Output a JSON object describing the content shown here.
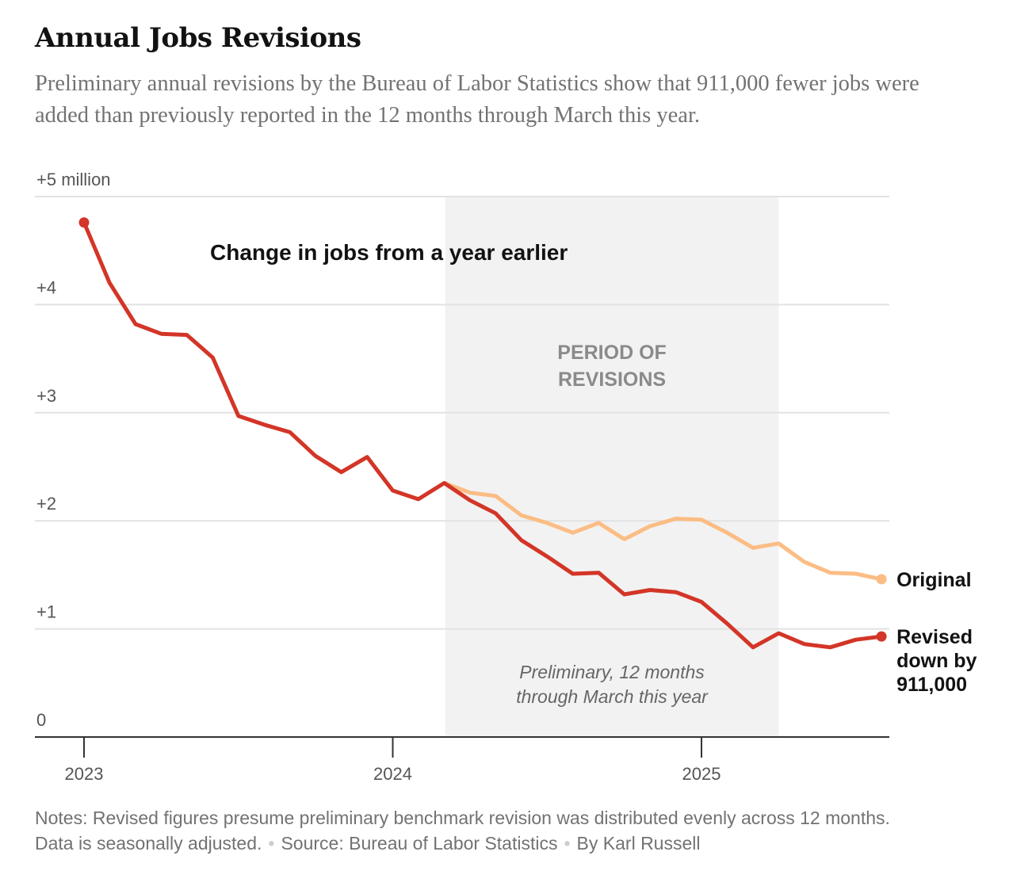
{
  "title": "Annual Jobs Revisions",
  "subtitle": "Preliminary annual revisions by the Bureau of Labor Statistics show that 911,000 fewer jobs were added than previously reported in the 12 months through March this year.",
  "notes": {
    "line1": "Notes: Revised figures presume preliminary benchmark revision was distributed evenly across 12 months.",
    "line2": "Data is seasonally adjusted.",
    "source": "Source: Bureau of Labor Statistics",
    "byline": "By Karl Russell"
  },
  "chart_data": {
    "type": "line",
    "title": "Change in jobs from a year earlier",
    "ylim": [
      0,
      5
    ],
    "y_ticks": [
      {
        "value": 5,
        "label": "+5 million"
      },
      {
        "value": 4,
        "label": "+4"
      },
      {
        "value": 3,
        "label": "+3"
      },
      {
        "value": 2,
        "label": "+2"
      },
      {
        "value": 1,
        "label": "+1"
      },
      {
        "value": 0,
        "label": "0"
      }
    ],
    "x_ticks": [
      {
        "value": 2023,
        "label": "2023"
      },
      {
        "value": 2024,
        "label": "2024"
      },
      {
        "value": 2025,
        "label": "2025"
      }
    ],
    "shaded_region": {
      "start": 2024.17,
      "end": 2025.25,
      "label_line1": "PERIOD OF",
      "label_line2": "REVISIONS",
      "note_line1": "Preliminary, 12 months",
      "note_line2": "through March this year",
      "color": "#f2f2f2"
    },
    "grid": true,
    "series": [
      {
        "name": "Revised",
        "end_label": [
          "Revised",
          "down by",
          "911,000"
        ],
        "color": "#d33527",
        "points": [
          [
            2023.0,
            4.76
          ],
          [
            2023.083,
            4.2
          ],
          [
            2023.167,
            3.82
          ],
          [
            2023.25,
            3.73
          ],
          [
            2023.333,
            3.72
          ],
          [
            2023.417,
            3.51
          ],
          [
            2023.5,
            2.97
          ],
          [
            2023.583,
            2.89
          ],
          [
            2023.667,
            2.82
          ],
          [
            2023.75,
            2.6
          ],
          [
            2023.833,
            2.45
          ],
          [
            2023.917,
            2.59
          ],
          [
            2024.0,
            2.28
          ],
          [
            2024.083,
            2.2
          ],
          [
            2024.167,
            2.35
          ],
          [
            2024.25,
            2.19
          ],
          [
            2024.333,
            2.07
          ],
          [
            2024.417,
            1.82
          ],
          [
            2024.5,
            1.67
          ],
          [
            2024.583,
            1.51
          ],
          [
            2024.667,
            1.52
          ],
          [
            2024.75,
            1.32
          ],
          [
            2024.833,
            1.36
          ],
          [
            2024.917,
            1.34
          ],
          [
            2025.0,
            1.25
          ],
          [
            2025.083,
            1.05
          ],
          [
            2025.167,
            0.83
          ],
          [
            2025.25,
            0.96
          ],
          [
            2025.333,
            0.86
          ],
          [
            2025.417,
            0.83
          ],
          [
            2025.5,
            0.9
          ],
          [
            2025.583,
            0.93
          ]
        ]
      },
      {
        "name": "Original",
        "end_label": [
          "Original"
        ],
        "color": "#fbbd84",
        "points": [
          [
            2024.167,
            2.35
          ],
          [
            2024.25,
            2.26
          ],
          [
            2024.333,
            2.23
          ],
          [
            2024.417,
            2.05
          ],
          [
            2024.5,
            1.98
          ],
          [
            2024.583,
            1.89
          ],
          [
            2024.667,
            1.98
          ],
          [
            2024.75,
            1.83
          ],
          [
            2024.833,
            1.95
          ],
          [
            2024.917,
            2.02
          ],
          [
            2025.0,
            2.01
          ],
          [
            2025.083,
            1.89
          ],
          [
            2025.167,
            1.75
          ],
          [
            2025.25,
            1.79
          ],
          [
            2025.333,
            1.62
          ],
          [
            2025.417,
            1.52
          ],
          [
            2025.5,
            1.51
          ],
          [
            2025.583,
            1.46
          ]
        ]
      }
    ]
  }
}
